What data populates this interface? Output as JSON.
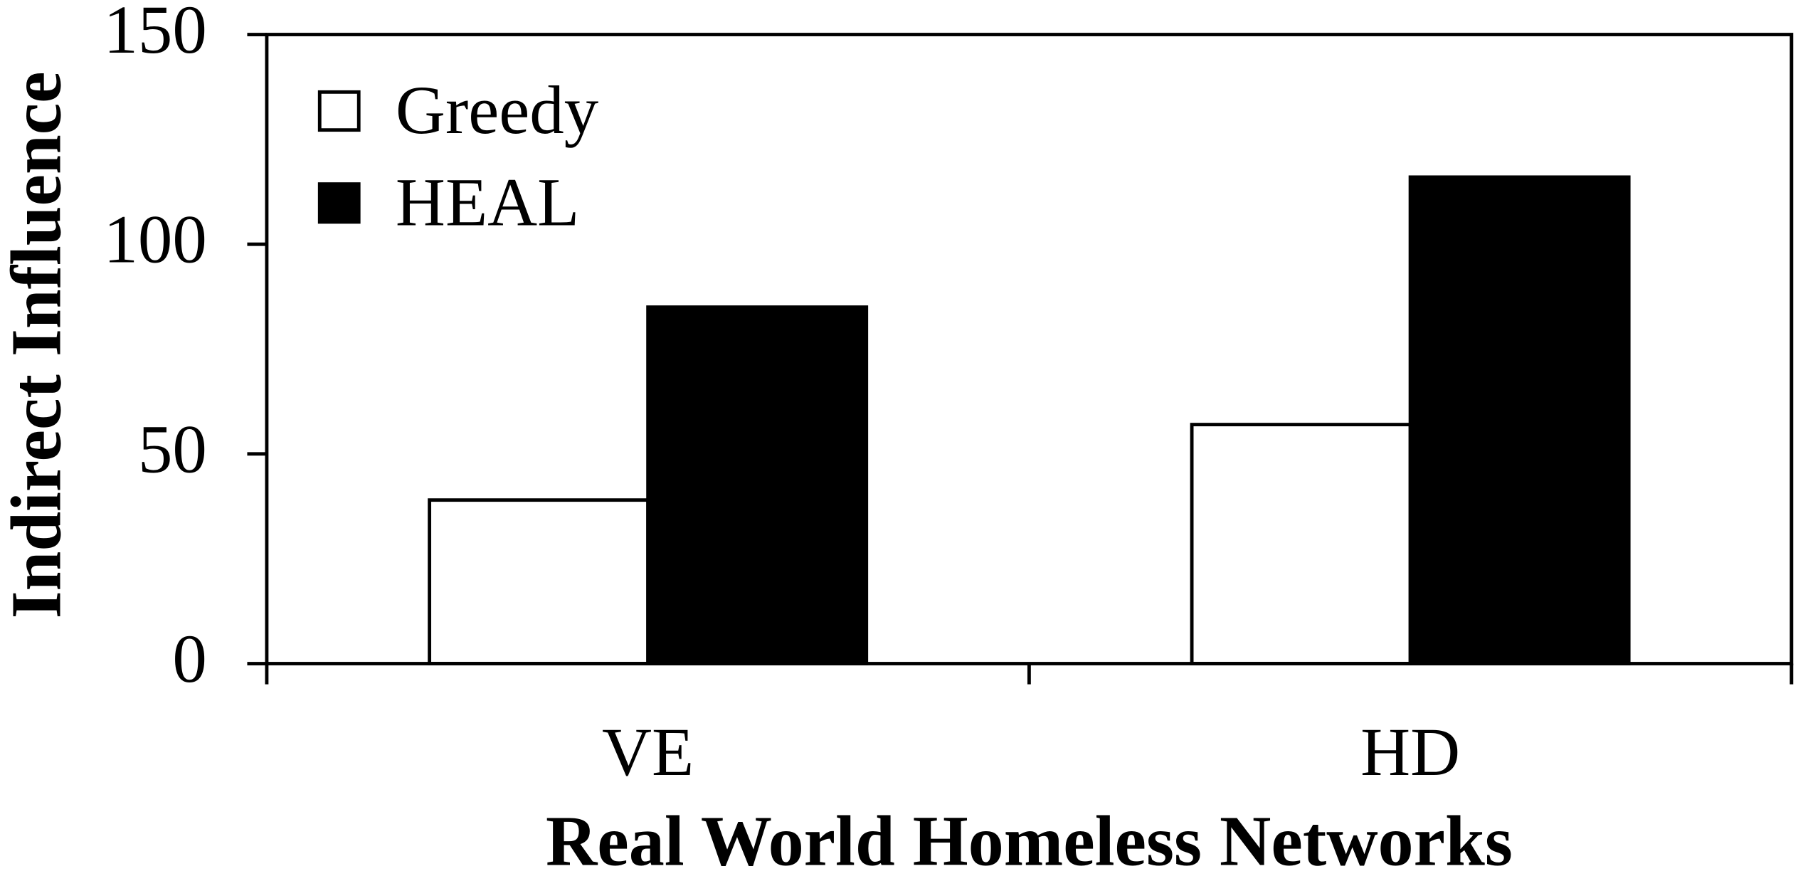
{
  "chart_data": {
    "type": "bar",
    "x_label": "Real World Homeless Networks",
    "y_label": "Indirect Influence",
    "categories": [
      "VE",
      "HD"
    ],
    "series": [
      {
        "name": "Greedy",
        "color": "#ffffff",
        "values": [
          39,
          57
        ]
      },
      {
        "name": "HEAL",
        "color": "#000000",
        "values": [
          85,
          116
        ]
      }
    ],
    "ylim": [
      0,
      150
    ],
    "yticks": [
      0,
      50,
      100,
      150
    ],
    "legend": "upper-left"
  }
}
